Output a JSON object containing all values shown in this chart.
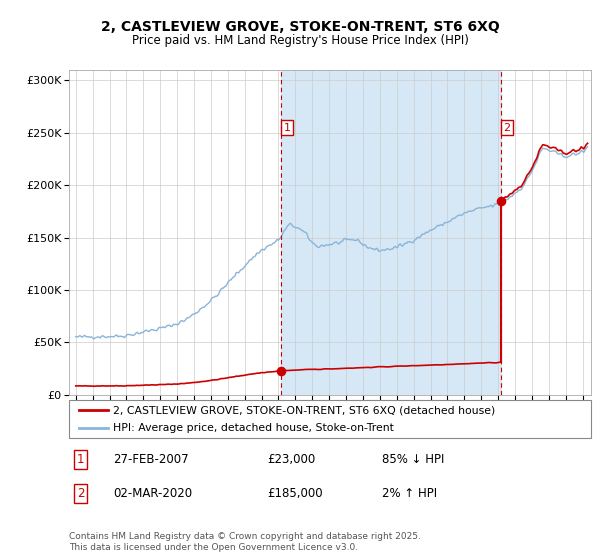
{
  "title_line1": "2, CASTLEVIEW GROVE, STOKE-ON-TRENT, ST6 6XQ",
  "title_line2": "Price paid vs. HM Land Registry's House Price Index (HPI)",
  "legend_line1": "2, CASTLEVIEW GROVE, STOKE-ON-TRENT, ST6 6XQ (detached house)",
  "legend_line2": "HPI: Average price, detached house, Stoke-on-Trent",
  "vline1_x": 2007.15,
  "vline2_x": 2020.17,
  "sale1_price": 23000,
  "sale2_price": 185000,
  "ylim": [
    0,
    310000
  ],
  "xlim_start": 1994.6,
  "xlim_end": 2025.5,
  "hpi_color": "#8ab4d8",
  "price_color": "#cc0000",
  "span_color": "#d6e8f5",
  "grid_color": "#cccccc",
  "footer": "Contains HM Land Registry data © Crown copyright and database right 2025.\nThis data is licensed under the Open Government Licence v3.0.",
  "yticks": [
    0,
    50000,
    100000,
    150000,
    200000,
    250000,
    300000
  ],
  "ytick_labels": [
    "£0",
    "£50K",
    "£100K",
    "£150K",
    "£200K",
    "£250K",
    "£300K"
  ],
  "xticks": [
    1995,
    1996,
    1997,
    1998,
    1999,
    2000,
    2001,
    2002,
    2003,
    2004,
    2005,
    2006,
    2007,
    2008,
    2009,
    2010,
    2011,
    2012,
    2013,
    2014,
    2015,
    2016,
    2017,
    2018,
    2019,
    2020,
    2021,
    2022,
    2023,
    2024,
    2025
  ],
  "label1": "1",
  "label2": "2",
  "ann1_date": "27-FEB-2007",
  "ann1_price": "£23,000",
  "ann1_pct": "85% ↓ HPI",
  "ann2_date": "02-MAR-2020",
  "ann2_price": "£185,000",
  "ann2_pct": "2% ↑ HPI"
}
